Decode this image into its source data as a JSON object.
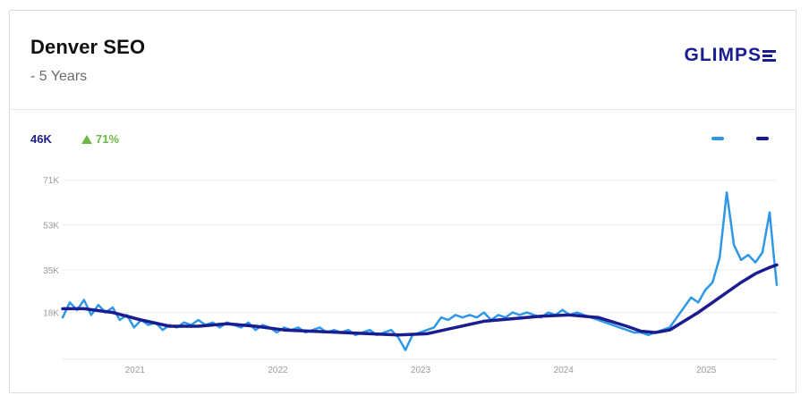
{
  "header": {
    "title": "Denver SEO",
    "subtitle": "- 5 Years",
    "logo": "GLIMPS"
  },
  "summary": {
    "value": "46K",
    "change": "71%",
    "change_direction": "up"
  },
  "colors": {
    "raw": "#2f97e8",
    "trend": "#1a1d8f",
    "up": "#6bb944"
  },
  "chart_data": {
    "type": "line",
    "title": "Denver SEO",
    "subtitle": "- 5 Years",
    "y_ticks": [
      "71K",
      "53K",
      "35K",
      "18K"
    ],
    "y_tick_values": [
      71000,
      53000,
      35000,
      18000
    ],
    "x_ticks": [
      "2021",
      "2022",
      "2023",
      "2024",
      "2025"
    ],
    "x_tick_values": [
      2021,
      2022,
      2023,
      2024,
      2025
    ],
    "xlim": [
      2020.65,
      2025.65
    ],
    "ylim": [
      0,
      75000
    ],
    "grid": true,
    "legend": "top-right",
    "series": [
      {
        "role": "raw",
        "x": [
          2020.65,
          2020.7,
          2020.75,
          2020.8,
          2020.85,
          2020.9,
          2020.95,
          2021.0,
          2021.05,
          2021.1,
          2021.15,
          2021.2,
          2021.25,
          2021.3,
          2021.35,
          2021.4,
          2021.45,
          2021.5,
          2021.55,
          2021.6,
          2021.65,
          2021.7,
          2021.75,
          2021.8,
          2021.85,
          2021.9,
          2021.95,
          2022.0,
          2022.05,
          2022.1,
          2022.15,
          2022.2,
          2022.25,
          2022.3,
          2022.35,
          2022.4,
          2022.45,
          2022.5,
          2022.55,
          2022.6,
          2022.65,
          2022.7,
          2022.75,
          2022.8,
          2022.85,
          2022.9,
          2022.95,
          2023.0,
          2023.05,
          2023.1,
          2023.15,
          2023.2,
          2023.25,
          2023.3,
          2023.35,
          2023.4,
          2023.45,
          2023.5,
          2023.55,
          2023.6,
          2023.65,
          2023.7,
          2023.75,
          2023.8,
          2023.85,
          2023.9,
          2023.95,
          2024.0,
          2024.05,
          2024.1,
          2024.15,
          2024.2,
          2024.25,
          2024.3,
          2024.35,
          2024.4,
          2024.45,
          2024.5,
          2024.55,
          2024.6,
          2024.65,
          2024.7,
          2024.75,
          2024.8,
          2024.85,
          2024.9,
          2024.95,
          2025.0,
          2025.05,
          2025.1,
          2025.15,
          2025.2,
          2025.25,
          2025.3,
          2025.35,
          2025.4,
          2025.45,
          2025.5,
          2025.55,
          2025.6,
          2025.63,
          2025.65
        ],
        "y": [
          16000,
          22000,
          19000,
          23000,
          17000,
          21000,
          18000,
          20000,
          15000,
          17000,
          12000,
          15000,
          13000,
          14000,
          11000,
          13000,
          12000,
          14000,
          13000,
          15000,
          13000,
          14000,
          12000,
          14000,
          13000,
          12000,
          14000,
          11000,
          13000,
          12000,
          10000,
          12000,
          11000,
          12000,
          10000,
          11000,
          12000,
          10000,
          11000,
          10000,
          11000,
          9000,
          10000,
          11000,
          9000,
          10000,
          11000,
          8000,
          3000,
          9000,
          10000,
          11000,
          12000,
          16000,
          15000,
          17000,
          16000,
          17000,
          16000,
          18000,
          15000,
          17000,
          16000,
          18000,
          17000,
          18000,
          17000,
          16000,
          18000,
          17000,
          19000,
          17000,
          18000,
          17000,
          16000,
          15000,
          14000,
          13000,
          12000,
          11000,
          10000,
          10000,
          9000,
          10000,
          11000,
          12000,
          16000,
          20000,
          24000,
          22000,
          27000,
          30000,
          40000,
          66000,
          45000,
          39000,
          41000,
          38000,
          42000,
          58000,
          40000,
          29000
        ]
      },
      {
        "role": "trend",
        "x": [
          2020.65,
          2020.8,
          2021.0,
          2021.2,
          2021.4,
          2021.6,
          2021.8,
          2022.0,
          2022.2,
          2022.4,
          2022.6,
          2022.8,
          2023.0,
          2023.2,
          2023.4,
          2023.6,
          2023.8,
          2024.0,
          2024.2,
          2024.4,
          2024.6,
          2024.7,
          2024.8,
          2024.9,
          2025.0,
          2025.1,
          2025.2,
          2025.3,
          2025.4,
          2025.5,
          2025.6,
          2025.65
        ],
        "y": [
          19500,
          19500,
          18000,
          15000,
          12500,
          12500,
          13500,
          12500,
          11000,
          10500,
          10000,
          9500,
          9000,
          9500,
          12000,
          14500,
          15500,
          16500,
          17000,
          16000,
          12500,
          10500,
          10000,
          11000,
          14500,
          18000,
          22000,
          26000,
          30000,
          33500,
          36000,
          37000
        ]
      }
    ]
  }
}
